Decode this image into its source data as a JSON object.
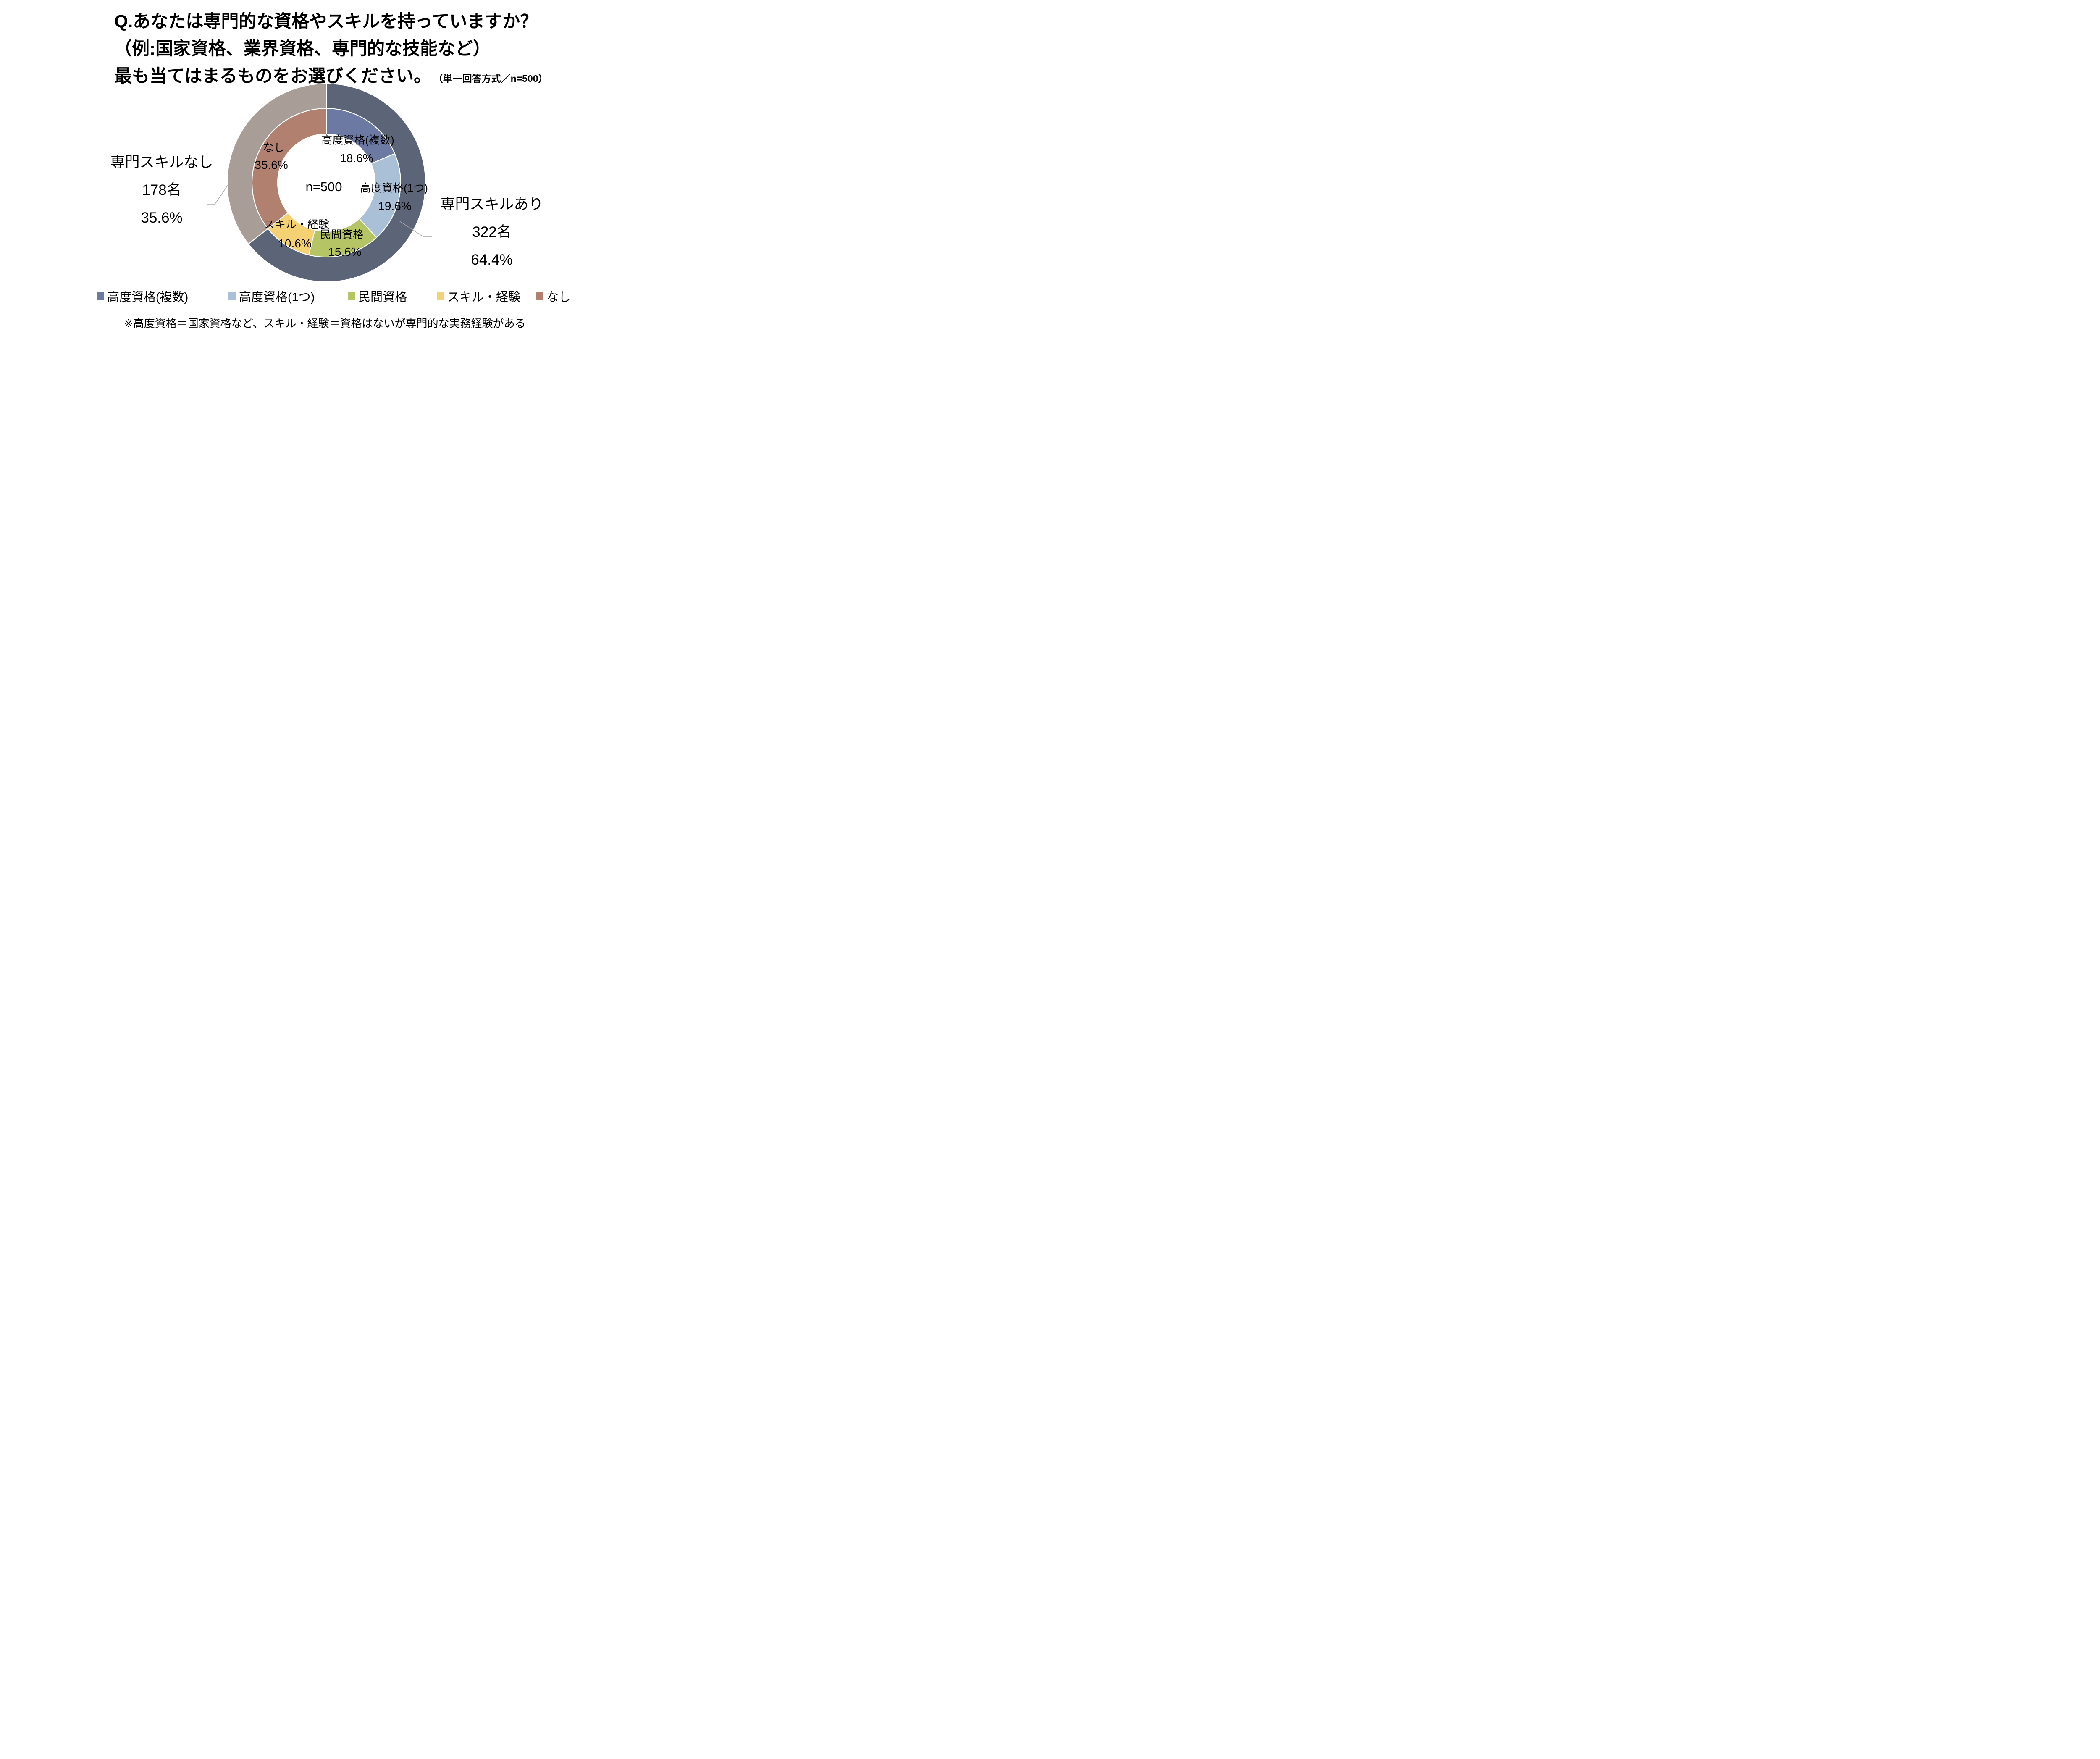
{
  "title": {
    "line1": "Q.あなたは専門的な資格やスキルを持っていますか？",
    "line2": "（例:国家資格、業界資格、専門的な技能など）",
    "line3": "最も当てはまるものをお選びください。",
    "note": "（単一回答方式／n=500）"
  },
  "chart_data": {
    "type": "pie",
    "subtype": "double-ring-donut",
    "center_label": "n=500",
    "n": 500,
    "start_angle_deg": 0,
    "direction": "clockwise",
    "series": [
      {
        "name": "回答内訳（内側リング）",
        "segments": [
          {
            "label": "高度資格(複数)",
            "value": 18.6,
            "pct_label": "18.6%",
            "color": "#6b79a3"
          },
          {
            "label": "高度資格(1つ)",
            "value": 19.6,
            "pct_label": "19.6%",
            "color": "#a9c0d6"
          },
          {
            "label": "民間資格",
            "value": 15.6,
            "pct_label": "15.6%",
            "color": "#b5c465"
          },
          {
            "label": "スキル・経験",
            "value": 10.6,
            "pct_label": "10.6%",
            "color": "#f4d172"
          },
          {
            "label": "なし",
            "value": 35.6,
            "pct_label": "35.6%",
            "color": "#b1806f"
          }
        ]
      },
      {
        "name": "スキル有無（外側リング）",
        "segments": [
          {
            "label": "専門スキルあり",
            "value": 64.4,
            "pct_label": "64.4%",
            "color": "#5c6577"
          },
          {
            "label": "専門スキルなし",
            "value": 35.6,
            "pct_label": "35.6%",
            "color": "#a89e97"
          }
        ]
      }
    ]
  },
  "annotations": {
    "left": {
      "title": "専門スキルなし",
      "count": "178名",
      "pct": "35.6%"
    },
    "right": {
      "title": "専門スキルあり",
      "count": "322名",
      "pct": "64.4%"
    }
  },
  "legend": {
    "items": [
      {
        "label": "高度資格(複数)",
        "color": "#6b79a3"
      },
      {
        "label": "高度資格(1つ)",
        "color": "#a9c0d6"
      },
      {
        "label": "民間資格",
        "color": "#b5c465"
      },
      {
        "label": "スキル・経験",
        "color": "#f4d172"
      },
      {
        "label": "なし",
        "color": "#b1806f"
      }
    ]
  },
  "footnote": "※高度資格＝国家資格など、スキル・経験＝資格はないが専門的な実務経験がある"
}
